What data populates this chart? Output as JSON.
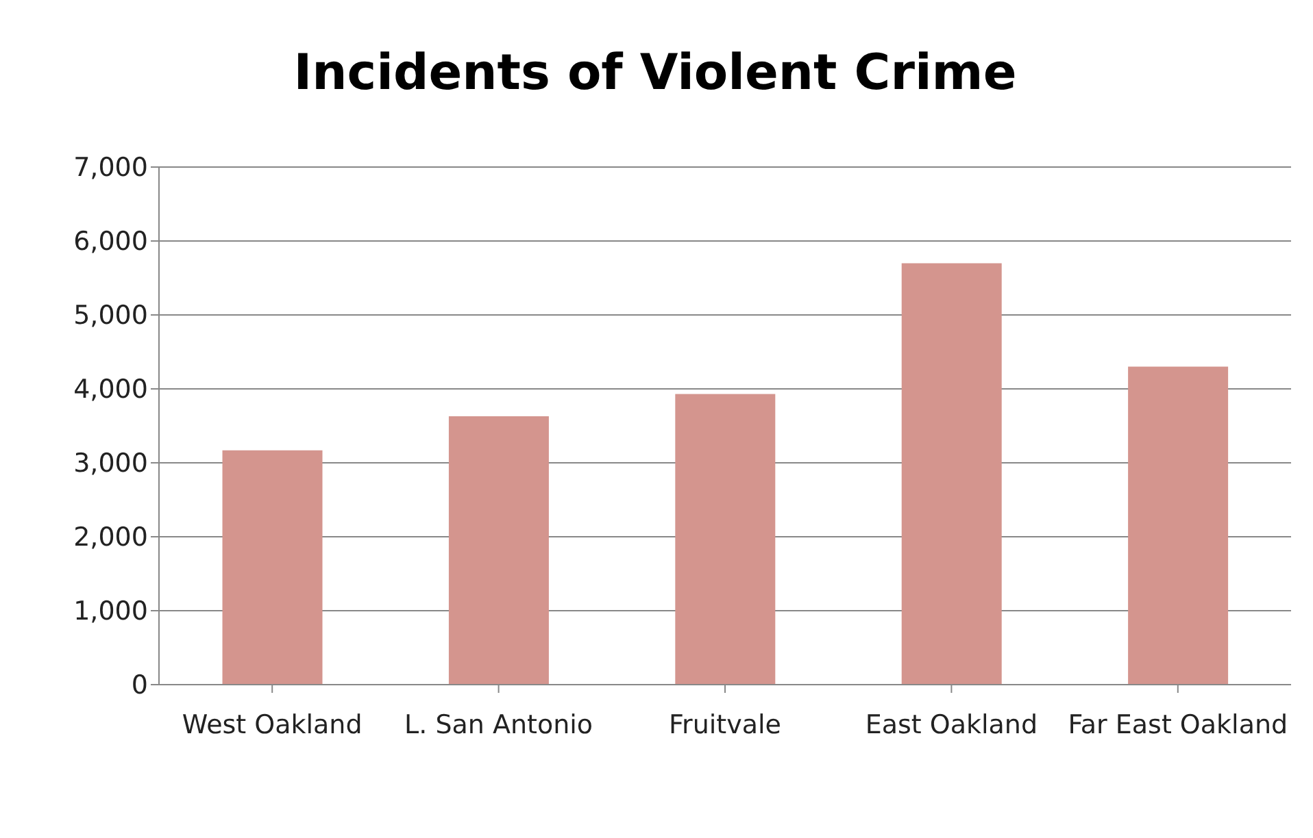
{
  "chart_data": {
    "type": "bar",
    "title": "Incidents of Violent Crime",
    "categories": [
      "West Oakland",
      "L. San Antonio",
      "Fruitvale",
      "East Oakland",
      "Far East Oakland"
    ],
    "values": [
      3170,
      3630,
      3930,
      5700,
      4300
    ],
    "color": "#d4958e",
    "ylim": [
      0,
      7000
    ],
    "yticks": [
      {
        "value": 0,
        "label": "0"
      },
      {
        "value": 1000,
        "label": "1,000"
      },
      {
        "value": 2000,
        "label": "2,000"
      },
      {
        "value": 3000,
        "label": "3,000"
      },
      {
        "value": 4000,
        "label": "4,000"
      },
      {
        "value": 5000,
        "label": "5,000"
      },
      {
        "value": 6000,
        "label": "6,000"
      },
      {
        "value": 7000,
        "label": "7,000"
      }
    ],
    "grid": "y",
    "legend": false
  }
}
